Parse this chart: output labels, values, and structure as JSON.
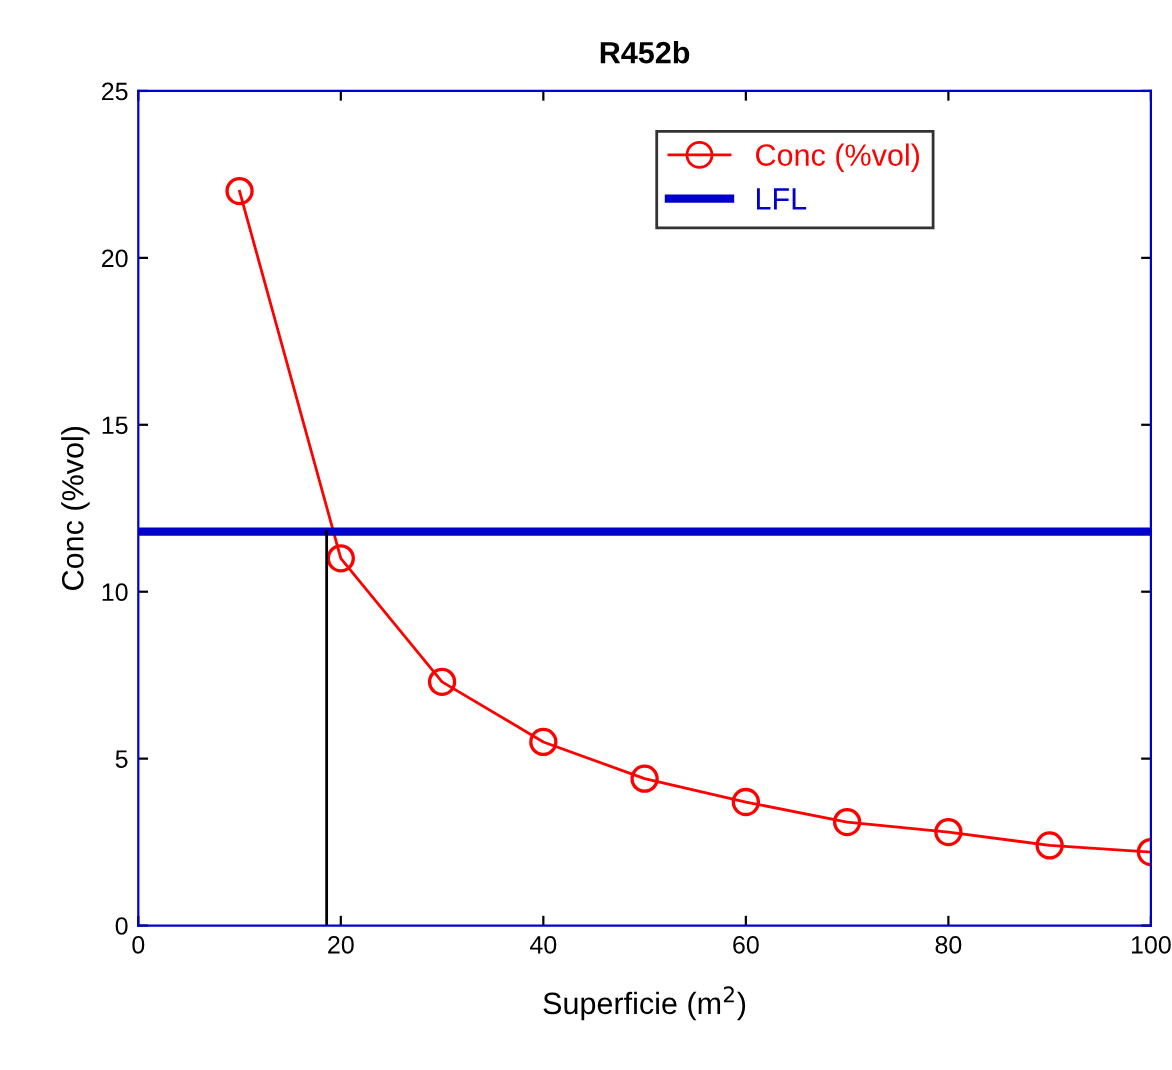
{
  "chart_data": {
    "type": "line",
    "title": "R452b",
    "xlabel": "Superficie (m$^{2}$)",
    "ylabel": "Conc (%vol)",
    "x": [
      10,
      20,
      30,
      40,
      50,
      60,
      70,
      80,
      90,
      100
    ],
    "series": [
      {
        "name": "Conc (%vol)",
        "color": "#ff0000",
        "marker": "circle",
        "values": [
          22,
          11,
          7.3,
          5.5,
          4.4,
          3.7,
          3.1,
          2.8,
          2.4,
          2.2
        ]
      },
      {
        "name": "LFL",
        "color": "#0000cc",
        "x": [
          0,
          100
        ],
        "marker": "none",
        "values": [
          11.8,
          11.8
        ]
      },
      {
        "color": "#000000",
        "x": [
          18.6,
          18.6
        ],
        "marker": "none",
        "values": [
          0,
          11.8
        ]
      }
    ],
    "xlim": [
      0,
      100
    ],
    "ylim": [
      0,
      25
    ],
    "xticks": [
      0,
      20,
      40,
      60,
      80,
      100
    ],
    "yticks": [
      0,
      5,
      10,
      15,
      20,
      25
    ],
    "grid": false,
    "legend": "top right",
    "line_style": "solid"
  }
}
